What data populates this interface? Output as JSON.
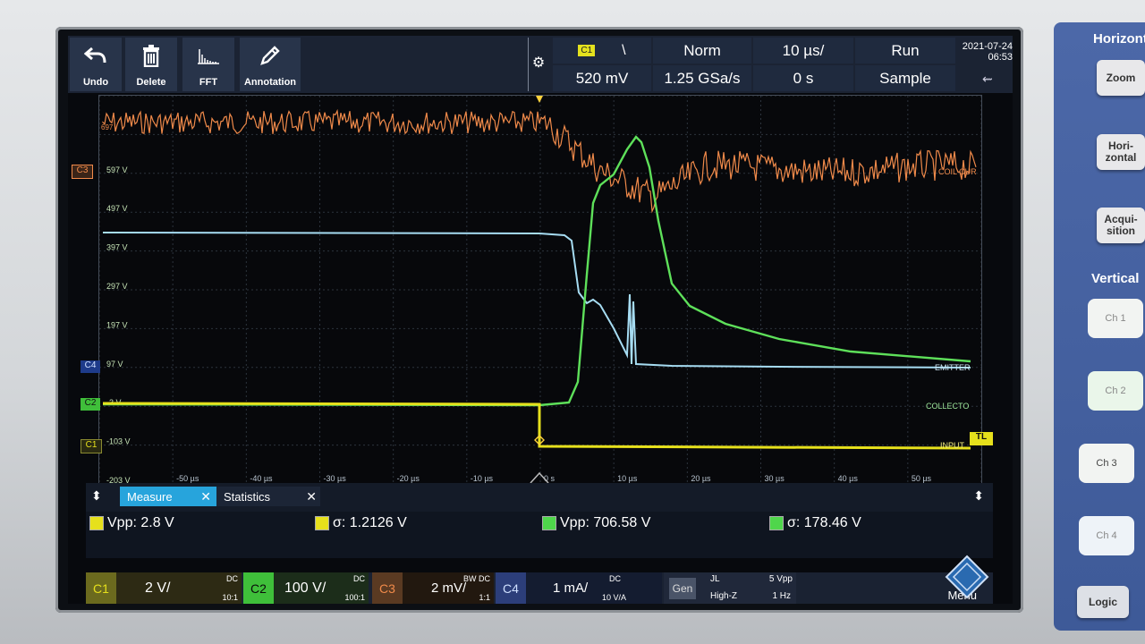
{
  "toolbar": {
    "undo": "Undo",
    "delete": "Delete",
    "fft": "FFT",
    "annotation": "Annotation"
  },
  "trigger": {
    "source": "C1",
    "slope_icon": "falling-edge-icon",
    "mode": "Norm",
    "timebase": "10 µs/",
    "state": "Run",
    "level": "520 mV",
    "sample_rate": "1.25 GSa/s",
    "position": "0 s",
    "acquisition": "Sample"
  },
  "datetime": {
    "date": "2021-07-24",
    "time": "06:53"
  },
  "grid": {
    "y_labels": [
      "597 V",
      "497 V",
      "397 V",
      "297 V",
      "197 V",
      "97 V",
      "-3 V",
      "-103 V",
      "-203 V"
    ],
    "x_labels": [
      "-50 µs",
      "-40 µs",
      "-30 µs",
      "-20 µs",
      "-10 µs",
      "0 s",
      "10 µs",
      "20 µs",
      "30 µs",
      "40 µs",
      "50 µs"
    ],
    "left_markers": [
      "C3",
      "C4",
      "C2",
      "C1"
    ],
    "trace_labels": {
      "coil": "COIL CUR",
      "emitter": "EMITTER",
      "collector": "COLLECTO",
      "input": "INPUT"
    },
    "trigger_level_marker": "TL",
    "top_c3_label": "697"
  },
  "measure": {
    "tab_measure": "Measure",
    "tab_statistics": "Statistics",
    "values": [
      {
        "ch": "C1",
        "text": "Vpp: 2.8 V",
        "color": "#e6e01c"
      },
      {
        "ch": "C1",
        "text": "σ: 1.2126 V",
        "color": "#e6e01c"
      },
      {
        "ch": "C2",
        "text": "Vpp: 706.58 V",
        "color": "#4fd64b"
      },
      {
        "ch": "C2",
        "text": "σ: 178.46 V",
        "color": "#4fd64b"
      }
    ]
  },
  "channels": {
    "c1": {
      "name": "C1",
      "scale": "2 V/",
      "coupling": "DC",
      "probe": "10:1"
    },
    "c2": {
      "name": "C2",
      "scale": "100 V/",
      "coupling": "DC",
      "probe": "100:1"
    },
    "c3": {
      "name": "C3",
      "scale": "2 mV/",
      "coupling": "DC",
      "probe": "1:1",
      "bw": "BW"
    },
    "c4": {
      "name": "C4",
      "scale": "1 mA/",
      "coupling": "DC",
      "probe": "10 V/A"
    },
    "gen": {
      "name": "Gen",
      "wave": "JL",
      "impedance": "High-Z",
      "amplitude": "5 Vpp",
      "frequency": "1 Hz"
    },
    "menu": "Menu"
  },
  "side": {
    "horizontal_title": "Horizontal",
    "zoom": "Zoom",
    "horizontal": "Hori-\nzontal",
    "acquisition": "Acqui-\nsition",
    "vertical_title": "Vertical",
    "ch1": "Ch 1",
    "ch2": "Ch 2",
    "ch3": "Ch 3",
    "ch4": "Ch 4",
    "logic": "Logic"
  },
  "colors": {
    "c1": "#e6e01c",
    "c2": "#5ee05a",
    "c3": "#f08a4a",
    "c4": "#9fd6f0",
    "accent": "#28a8e0"
  }
}
